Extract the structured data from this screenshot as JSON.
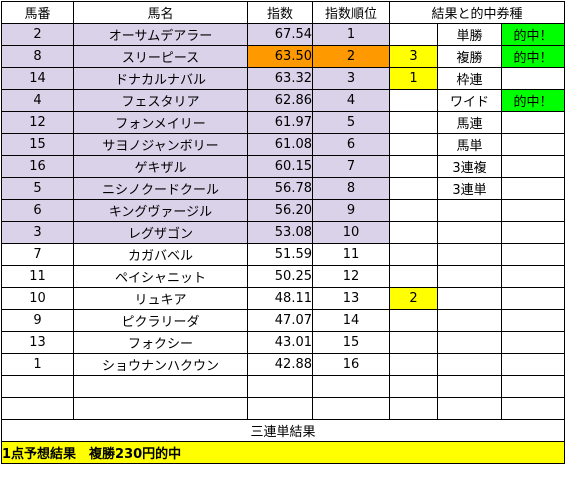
{
  "headers": {
    "umaban": "馬番",
    "bamei": "馬名",
    "shisu": "指数",
    "juni": "指数順位",
    "result": "結果と的中券種"
  },
  "rows": [
    {
      "umaban": "2",
      "name": "オーサムデアラー",
      "shisu": "67.54",
      "juni": "1"
    },
    {
      "umaban": "8",
      "name": "スリーピース",
      "shisu": "63.50",
      "juni": "2"
    },
    {
      "umaban": "14",
      "name": "ドナカルナバル",
      "shisu": "63.32",
      "juni": "3"
    },
    {
      "umaban": "4",
      "name": "フェスタリア",
      "shisu": "62.86",
      "juni": "4"
    },
    {
      "umaban": "12",
      "name": "フォンメイリー",
      "shisu": "61.97",
      "juni": "5"
    },
    {
      "umaban": "15",
      "name": "サヨノジャンボリー",
      "shisu": "61.08",
      "juni": "6"
    },
    {
      "umaban": "16",
      "name": "ゲキザル",
      "shisu": "60.15",
      "juni": "7"
    },
    {
      "umaban": "5",
      "name": "ニシノクードクール",
      "shisu": "56.78",
      "juni": "8"
    },
    {
      "umaban": "6",
      "name": "キングヴァージル",
      "shisu": "56.20",
      "juni": "9"
    },
    {
      "umaban": "3",
      "name": "レグザゴン",
      "shisu": "53.08",
      "juni": "10"
    },
    {
      "umaban": "7",
      "name": "カガバベル",
      "shisu": "51.59",
      "juni": "11"
    },
    {
      "umaban": "11",
      "name": "ペイシャニット",
      "shisu": "50.25",
      "juni": "12"
    },
    {
      "umaban": "10",
      "name": "リュキア",
      "shisu": "48.11",
      "juni": "13"
    },
    {
      "umaban": "9",
      "name": "ピクラリーダ",
      "shisu": "47.07",
      "juni": "14"
    },
    {
      "umaban": "13",
      "name": "フォクシー",
      "shisu": "43.01",
      "juni": "15"
    },
    {
      "umaban": "1",
      "name": "ショウナンハクウン",
      "shisu": "42.88",
      "juni": "16"
    }
  ],
  "placings": {
    "row2": "3",
    "row3": "1",
    "row13": "2"
  },
  "ticket_types": [
    "単勝",
    "複勝",
    "枠連",
    "ワイド",
    "馬連",
    "馬単",
    "3連複",
    "3連単"
  ],
  "hit_marks": {
    "tansho": "的中！",
    "fukusho": "的中！",
    "wide": "的中！"
  },
  "trifecta_label": "三連単結果",
  "summary": "1点予想結果　複勝230円的中",
  "colors": {
    "highlight_rows": "#d9d2e9",
    "top_index": "#ff9900",
    "placing": "#ffff00",
    "hit": "#00ff00"
  }
}
